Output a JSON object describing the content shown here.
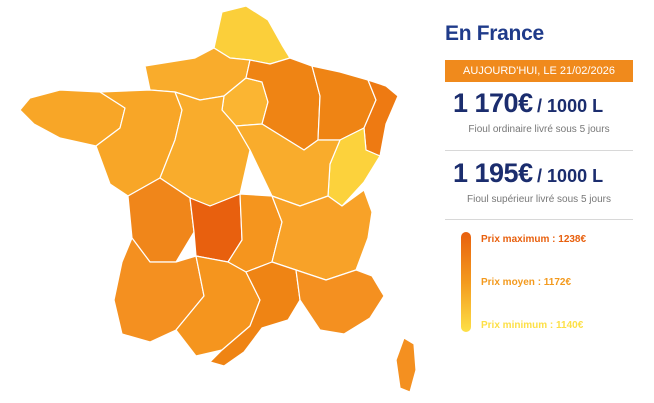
{
  "map": {
    "region_colors": {
      "hauts_de_france": "#fbcf3a",
      "normandie": "#f9ac2c",
      "ile_de_france": "#fbb532",
      "grand_est_champagne": "#ef8414",
      "grand_est_lorraine": "#ef8414",
      "grand_est_alsace": "#ee7a12",
      "franche_comte": "#fcd23c",
      "bretagne": "#f8a627",
      "pays_de_la_loire": "#f8a627",
      "centre": "#f9ac2c",
      "bourgogne": "#f9ac2c",
      "poitou_charentes": "#f0861a",
      "limousin": "#e8600e",
      "auvergne": "#f5951e",
      "rhone_alpes": "#f8a228",
      "aquitaine": "#f49020",
      "midi_pyrenees": "#f5951e",
      "languedoc": "#ef8414",
      "paca": "#f49020",
      "corse": "#f49020"
    }
  },
  "panel": {
    "title": "En France",
    "date": "AUJOURD'HUI, LE 21/02/2026",
    "ordinary": {
      "price": "1 170€",
      "unit": "/ 1000 L",
      "label": "Fioul ordinaire livré sous 5 jours"
    },
    "superior": {
      "price": "1 195€",
      "unit": "/ 1000 L",
      "label": "Fioul supérieur livré sous 5 jours"
    }
  },
  "legend": {
    "max_label": "Prix maximum : 1238€",
    "avg_label": "Prix moyen : 1172€",
    "min_label": "Prix minimum : 1140€",
    "max_color": "#e8600e",
    "avg_color": "#f39a1e",
    "min_color": "#fde047"
  }
}
